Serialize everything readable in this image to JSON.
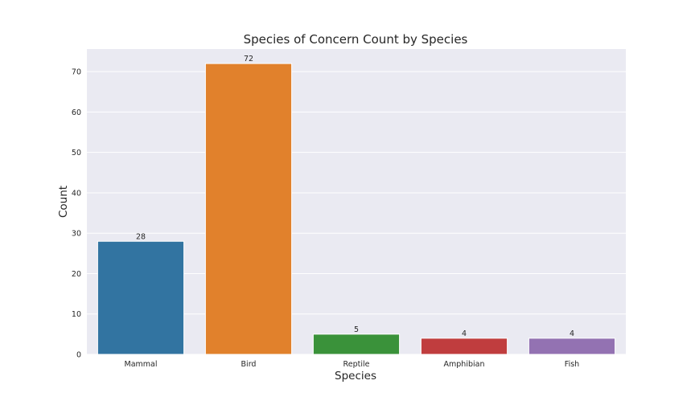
{
  "chart_data": {
    "type": "bar",
    "title": "Species of Concern Count by Species",
    "xlabel": "Species",
    "ylabel": "Count",
    "categories": [
      "Mammal",
      "Bird",
      "Reptile",
      "Amphibian",
      "Fish"
    ],
    "values": [
      28,
      72,
      5,
      4,
      4
    ],
    "colors": [
      "#3274a1",
      "#e1812c",
      "#3a923a",
      "#c03d3e",
      "#9372b2"
    ],
    "data_labels": [
      "28",
      "72",
      "5",
      "4",
      "4"
    ],
    "yticks": [
      0,
      10,
      20,
      30,
      40,
      50,
      60,
      70
    ],
    "ylim": [
      0,
      75.6
    ],
    "grid": true,
    "background": "#eaeaf2"
  }
}
